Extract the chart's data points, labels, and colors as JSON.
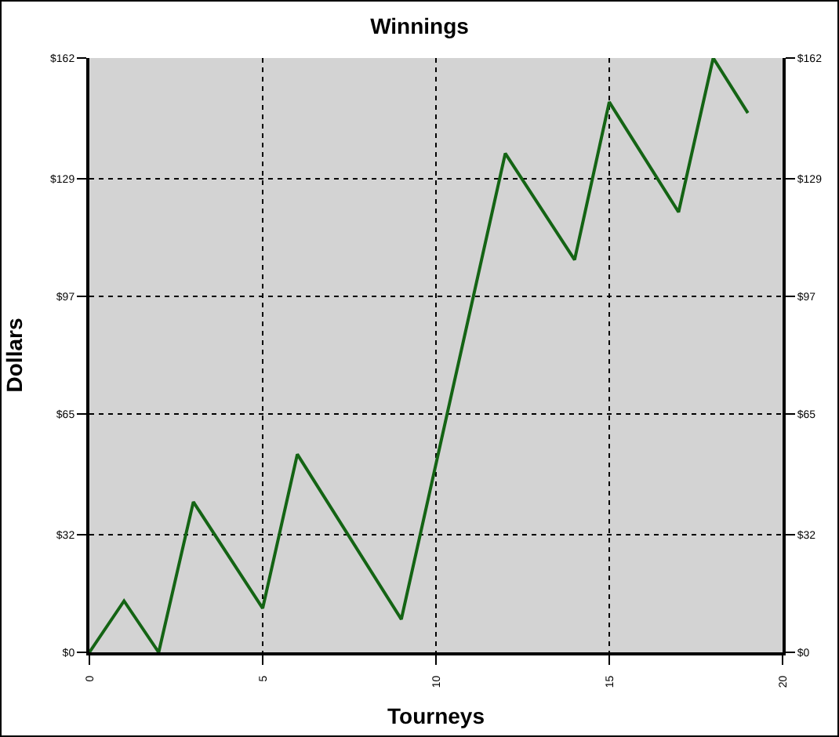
{
  "chart_data": {
    "type": "line",
    "title": "Winnings",
    "xlabel": "Tourneys",
    "ylabel": "Dollars",
    "x": [
      0,
      1,
      2,
      3,
      5,
      6,
      9,
      12,
      14,
      15,
      17,
      18,
      19
    ],
    "series": [
      {
        "color": "#146414",
        "values": [
          0,
          14,
          0,
          41,
          12,
          54,
          9,
          136,
          107,
          150,
          120,
          162,
          147
        ]
      }
    ],
    "xlim": [
      0,
      20
    ],
    "xticks": [
      0,
      5,
      10,
      15,
      20
    ],
    "ylim": [
      0,
      162
    ],
    "yticks": [
      {
        "value": 0,
        "label": "$0"
      },
      {
        "value": 32,
        "label": "$32"
      },
      {
        "value": 65,
        "label": "$65"
      },
      {
        "value": 97,
        "label": "$97"
      },
      {
        "value": 129,
        "label": "$129"
      },
      {
        "value": 162,
        "label": "$162"
      }
    ],
    "y2lim": [
      0,
      162
    ],
    "y2ticks": [
      {
        "value": 0,
        "label": "$0"
      },
      {
        "value": 32,
        "label": "$32"
      },
      {
        "value": 65,
        "label": "$65"
      },
      {
        "value": 97,
        "label": "$97"
      },
      {
        "value": 129,
        "label": "$129"
      },
      {
        "value": 162,
        "label": "$162"
      }
    ],
    "grid": true,
    "marker": "none",
    "line_style": "solid"
  }
}
